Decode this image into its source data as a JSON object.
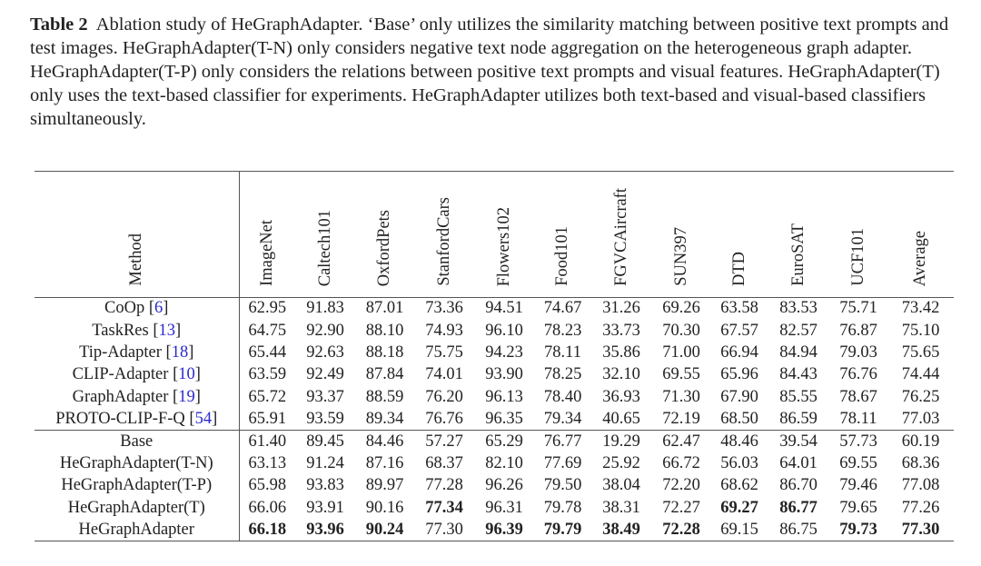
{
  "caption": {
    "label": "Table 2",
    "text": "Ablation study of HeGraphAdapter. ‘Base’ only utilizes the similarity matching between positive text prompts and test images. HeGraphAdapter(T-N) only considers negative text node aggregation on the heterogeneous graph adapter. HeGraphAdapter(T-P) only considers the relations between positive text prompts and visual features. HeGraphAdapter(T) only uses the text-based classifier for experiments. HeGraphAdapter utilizes both text-based and visual-based classifiers simultaneously."
  },
  "table": {
    "method_header": "Method",
    "columns": [
      "ImageNet",
      "Caltech101",
      "OxfordPets",
      "StanfordCars",
      "Flowers102",
      "Food101",
      "FGVCAircraft",
      "SUN397",
      "DTD",
      "EuroSAT",
      "UCF101",
      "Average"
    ],
    "groups": [
      [
        {
          "method": "CoOp",
          "ref": "6",
          "values": [
            "62.95",
            "91.83",
            "87.01",
            "73.36",
            "94.51",
            "74.67",
            "31.26",
            "69.26",
            "63.58",
            "83.53",
            "75.71",
            "73.42"
          ],
          "bold": []
        },
        {
          "method": "TaskRes",
          "ref": "13",
          "values": [
            "64.75",
            "92.90",
            "88.10",
            "74.93",
            "96.10",
            "78.23",
            "33.73",
            "70.30",
            "67.57",
            "82.57",
            "76.87",
            "75.10"
          ],
          "bold": []
        },
        {
          "method": "Tip-Adapter",
          "ref": "18",
          "values": [
            "65.44",
            "92.63",
            "88.18",
            "75.75",
            "94.23",
            "78.11",
            "35.86",
            "71.00",
            "66.94",
            "84.94",
            "79.03",
            "75.65"
          ],
          "bold": []
        },
        {
          "method": "CLIP-Adapter",
          "ref": "10",
          "values": [
            "63.59",
            "92.49",
            "87.84",
            "74.01",
            "93.90",
            "78.25",
            "32.10",
            "69.55",
            "65.96",
            "84.43",
            "76.76",
            "74.44"
          ],
          "bold": []
        },
        {
          "method": "GraphAdapter",
          "ref": "19",
          "values": [
            "65.72",
            "93.37",
            "88.59",
            "76.20",
            "96.13",
            "78.40",
            "36.93",
            "71.30",
            "67.90",
            "85.55",
            "78.67",
            "76.25"
          ],
          "bold": []
        },
        {
          "method": "PROTO-CLIP-F-Q",
          "ref": "54",
          "values": [
            "65.91",
            "93.59",
            "89.34",
            "76.76",
            "96.35",
            "79.34",
            "40.65",
            "72.19",
            "68.50",
            "86.59",
            "78.11",
            "77.03"
          ],
          "bold": []
        }
      ],
      [
        {
          "method": "Base",
          "ref": "",
          "values": [
            "61.40",
            "89.45",
            "84.46",
            "57.27",
            "65.29",
            "76.77",
            "19.29",
            "62.47",
            "48.46",
            "39.54",
            "57.73",
            "60.19"
          ],
          "bold": []
        },
        {
          "method": "HeGraphAdapter(T-N)",
          "ref": "",
          "values": [
            "63.13",
            "91.24",
            "87.16",
            "68.37",
            "82.10",
            "77.69",
            "25.92",
            "66.72",
            "56.03",
            "64.01",
            "69.55",
            "68.36"
          ],
          "bold": []
        },
        {
          "method": "HeGraphAdapter(T-P)",
          "ref": "",
          "values": [
            "65.98",
            "93.83",
            "89.97",
            "77.28",
            "96.26",
            "79.50",
            "38.04",
            "72.20",
            "68.62",
            "86.70",
            "79.46",
            "77.08"
          ],
          "bold": []
        },
        {
          "method": "HeGraphAdapter(T)",
          "ref": "",
          "values": [
            "66.06",
            "93.91",
            "90.16",
            "77.34",
            "96.31",
            "79.78",
            "38.31",
            "72.27",
            "69.27",
            "86.77",
            "79.65",
            "77.26"
          ],
          "bold": [
            3,
            8,
            9
          ]
        },
        {
          "method": "HeGraphAdapter",
          "ref": "",
          "values": [
            "66.18",
            "93.96",
            "90.24",
            "77.30",
            "96.39",
            "79.79",
            "38.49",
            "72.28",
            "69.15",
            "86.75",
            "79.73",
            "77.30"
          ],
          "bold": [
            0,
            1,
            2,
            4,
            5,
            6,
            7,
            10,
            11
          ]
        }
      ]
    ]
  },
  "colors": {
    "reference_link": "#2a2ad0",
    "text": "#222222"
  }
}
